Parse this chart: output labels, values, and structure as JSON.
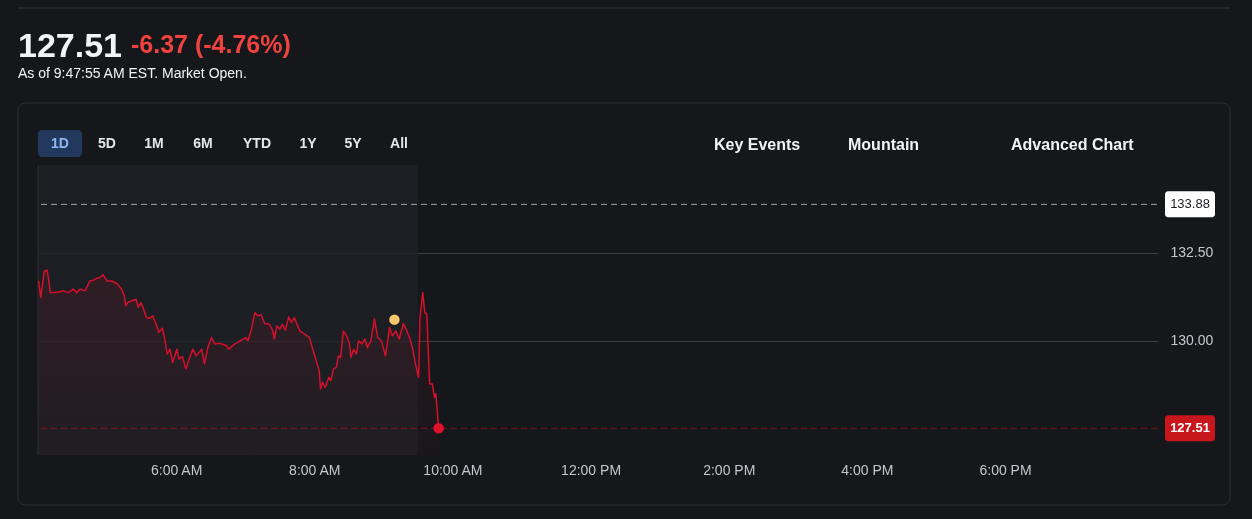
{
  "chart_data": {
    "type": "area",
    "title": "127.51",
    "subtitle": "As of 9:47:55 AM EST. Market Open.",
    "annotations": [
      "-6.37 (-4.76%)",
      "1D",
      "5D",
      "1M",
      "6M",
      "YTD",
      "1Y",
      "5Y",
      "All",
      "Key Events",
      "Mountain",
      "Advanced Chart"
    ],
    "series": [
      {
        "color": "#d4102b",
        "x": [
          4.01,
          4.04,
          4.09,
          4.13,
          4.15,
          4.18,
          4.27,
          4.37,
          4.44,
          4.51,
          4.56,
          4.61,
          4.68,
          4.75,
          4.8,
          4.85,
          4.9,
          4.94,
          5.0,
          5.07,
          5.14,
          5.21,
          5.25,
          5.27,
          5.3,
          5.36,
          5.42,
          5.45,
          5.49,
          5.52,
          5.57,
          5.62,
          5.66,
          5.71,
          5.75,
          5.8,
          5.84,
          5.87,
          5.91,
          5.95,
          6.01,
          6.04,
          6.09,
          6.14,
          6.19,
          6.24,
          6.29,
          6.37,
          6.41,
          6.46,
          6.51,
          6.56,
          6.63,
          6.73,
          6.76,
          6.85,
          7.01,
          7.04,
          7.09,
          7.14,
          7.18,
          7.23,
          7.28,
          7.35,
          7.4,
          7.42,
          7.46,
          7.5,
          7.54,
          7.58,
          7.63,
          7.67,
          7.71,
          7.79,
          7.86,
          7.93,
          7.97,
          8.02,
          8.07,
          8.09,
          8.12,
          8.16,
          8.21,
          8.24,
          8.28,
          8.32,
          8.35,
          8.38,
          8.42,
          8.47,
          8.51,
          8.53,
          8.57,
          8.61,
          8.64,
          8.69,
          8.73,
          8.77,
          8.82,
          8.87,
          8.92,
          8.97,
          9.03,
          9.09,
          9.13,
          9.18,
          9.23,
          9.29,
          9.34,
          9.38,
          9.42,
          9.47,
          9.51,
          9.53,
          9.57,
          9.6,
          9.63,
          9.65,
          9.67,
          9.71,
          9.74,
          9.76,
          9.8
        ],
        "values": [
          131.7,
          131.23,
          131.97,
          132.01,
          131.8,
          131.37,
          131.37,
          131.42,
          131.37,
          131.47,
          131.37,
          131.47,
          131.42,
          131.7,
          131.72,
          131.78,
          131.8,
          131.88,
          131.7,
          131.7,
          131.63,
          131.47,
          131.28,
          130.99,
          131.09,
          131.14,
          131.18,
          130.95,
          131.09,
          130.95,
          130.66,
          130.64,
          130.71,
          130.47,
          130.24,
          130.36,
          130.0,
          129.62,
          129.76,
          129.38,
          129.76,
          129.48,
          129.55,
          129.2,
          129.48,
          129.76,
          129.57,
          129.76,
          129.34,
          129.81,
          130.09,
          129.91,
          129.93,
          129.86,
          129.76,
          129.91,
          130.09,
          130.0,
          130.33,
          130.8,
          130.71,
          130.74,
          130.49,
          130.47,
          130.28,
          130.05,
          130.43,
          130.33,
          130.47,
          130.3,
          130.68,
          130.52,
          130.66,
          130.28,
          130.19,
          130.09,
          129.81,
          129.48,
          129.15,
          128.63,
          128.82,
          128.67,
          128.96,
          128.87,
          129.2,
          129.25,
          129.57,
          129.52,
          130.28,
          130.14,
          129.91,
          129.53,
          129.76,
          129.62,
          130.0,
          129.91,
          130.05,
          129.81,
          130.0,
          130.62,
          130.09,
          130.0,
          129.57,
          130.38,
          130.14,
          130.28,
          130.05,
          130.49,
          130.28,
          130.09,
          129.81,
          129.29,
          128.96,
          130.66,
          131.37,
          130.8,
          130.76,
          129.72,
          128.77,
          128.77,
          128.39,
          128.49,
          127.51
        ]
      },
      {
        "type": "scatter",
        "color": "#f7c56b",
        "x": [
          9.16
        ],
        "values": [
          130.6
        ]
      },
      {
        "type": "scatter",
        "color": "#e0102b",
        "x": [
          9.8
        ],
        "values": [
          127.51
        ]
      }
    ],
    "xlim": [
      4,
      20.2
    ],
    "xticks": [
      {
        "value": 6,
        "label": "6:00 AM"
      },
      {
        "value": 8,
        "label": "8:00 AM"
      },
      {
        "value": 10,
        "label": "10:00 AM"
      },
      {
        "value": 12,
        "label": "12:00 PM"
      },
      {
        "value": 14,
        "label": "2:00 PM"
      },
      {
        "value": 16,
        "label": "4:00 PM"
      },
      {
        "value": 18,
        "label": "6:00 PM"
      }
    ],
    "ylim": [
      126.75,
      135
    ],
    "yticks": [
      {
        "value": 130,
        "label": "130.00"
      },
      {
        "value": 132.5,
        "label": "132.50"
      }
    ],
    "ref_lines": [
      {
        "axis": "y",
        "value": 133.88,
        "label": "133.88",
        "color": "#ffffff",
        "line_style": "dashed"
      },
      {
        "axis": "y",
        "value": 127.51,
        "label": "127.51",
        "color": "#c8161d",
        "line_style": "dashed"
      }
    ],
    "bands": [
      {
        "axis": "x",
        "from": 4,
        "to": 9.5,
        "color": "#1e2126"
      }
    ],
    "grid": "y"
  }
}
